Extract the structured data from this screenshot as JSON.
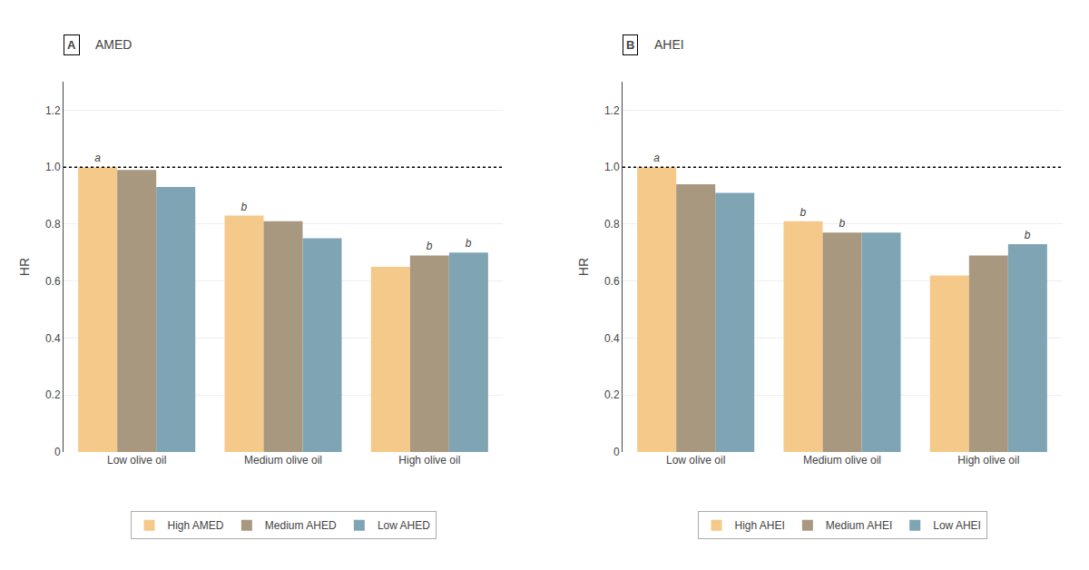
{
  "chart_data": [
    {
      "type": "bar",
      "title": "AMED",
      "panel_label": "A",
      "categories": [
        "Low olive oil",
        "Medium olive oil",
        "High olive oil"
      ],
      "series": [
        {
          "name": "High AMED",
          "color": "#f5c98a",
          "values": [
            1.0,
            0.83,
            0.65
          ],
          "annotations": [
            "a",
            "b",
            null
          ]
        },
        {
          "name": "Medium AHED",
          "color": "#a89880",
          "values": [
            0.99,
            0.81,
            0.69
          ],
          "annotations": [
            null,
            null,
            "b"
          ]
        },
        {
          "name": "Low AHED",
          "color": "#7fa5b5",
          "values": [
            0.93,
            0.75,
            0.7
          ],
          "annotations": [
            null,
            null,
            "b"
          ]
        }
      ],
      "ylabel": "HR",
      "ylim": [
        0,
        1.3
      ],
      "yticks": [
        0,
        0.2,
        0.4,
        0.6,
        0.8,
        {
          "value": 1.0,
          "label": "1.0"
        },
        1.2
      ],
      "hline": 1.0,
      "grid": true,
      "legend": "bottom"
    },
    {
      "type": "bar",
      "title": "AHEI",
      "panel_label": "B",
      "categories": [
        "Low olive oil",
        "Medium olive oil",
        "High olive oil"
      ],
      "series": [
        {
          "name": "High AHEI",
          "color": "#f5c98a",
          "values": [
            1.0,
            0.81,
            0.62
          ],
          "annotations": [
            "a",
            "b",
            null
          ]
        },
        {
          "name": "Medium AHEI",
          "color": "#a89880",
          "values": [
            0.94,
            0.77,
            0.69
          ],
          "annotations": [
            null,
            "b",
            null
          ]
        },
        {
          "name": "Low AHEI",
          "color": "#7fa5b5",
          "values": [
            0.91,
            0.77,
            0.73
          ],
          "annotations": [
            null,
            null,
            "b"
          ]
        }
      ],
      "ylabel": "HR",
      "ylim": [
        0,
        1.3
      ],
      "yticks": [
        0,
        0.2,
        0.4,
        0.6,
        0.8,
        {
          "value": 1.0,
          "label": "1.0"
        },
        1.2
      ],
      "hline": 1.0,
      "grid": true,
      "legend": "bottom"
    }
  ]
}
